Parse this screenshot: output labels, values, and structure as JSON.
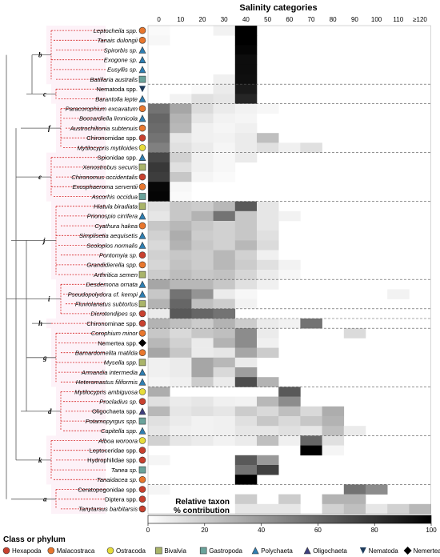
{
  "chart_data": {
    "type": "heatmap",
    "title": "Salinity categories",
    "x_categories": [
      "0",
      "10",
      "20",
      "30",
      "40",
      "50",
      "60",
      "70",
      "80",
      "90",
      "100",
      "110",
      "≥120"
    ],
    "colorbar": {
      "title_line1": "Relative taxon",
      "title_line2": "% contribution",
      "min": 0,
      "max": 100,
      "ticks": [
        "0",
        "20",
        "40",
        "60",
        "80",
        "100"
      ]
    },
    "legend": {
      "title": "Class or phylum",
      "items": [
        {
          "label": "Hexapoda",
          "shape": "circle",
          "color": "#c8412f"
        },
        {
          "label": "Malacostraca",
          "shape": "circle",
          "color": "#e8772e"
        },
        {
          "label": "Ostracoda",
          "shape": "circle",
          "color": "#e6dc3a"
        },
        {
          "label": "Bivalvia",
          "shape": "square",
          "color": "#a9b469"
        },
        {
          "label": "Gastropoda",
          "shape": "square",
          "color": "#6aa39b"
        },
        {
          "label": "Polychaeta",
          "shape": "triangle",
          "color": "#2f7fb2"
        },
        {
          "label": "Oligochaeta",
          "shape": "triangle",
          "color": "#3f3f7f"
        },
        {
          "label": "Nematoda",
          "shape": "triangle-down",
          "color": "#1f3b5b"
        },
        {
          "label": "Nemertea",
          "shape": "diamond",
          "color": "#000000"
        }
      ]
    },
    "clades": [
      "b",
      "c",
      "f",
      "e",
      "j",
      "i",
      "h",
      "g",
      "d",
      "k",
      "a"
    ],
    "rows": [
      {
        "taxon": "Leptocheila spp.",
        "italic": true,
        "group": "Malacostraca",
        "values": [
          2,
          0,
          0,
          5,
          100,
          0,
          0,
          0,
          0,
          0,
          0,
          0,
          0
        ]
      },
      {
        "taxon": "Tanais dulongii",
        "italic": true,
        "group": "Malacostraca",
        "values": [
          3,
          0,
          0,
          0,
          100,
          0,
          0,
          0,
          0,
          0,
          0,
          0,
          0
        ]
      },
      {
        "taxon": "Spirorbis sp.",
        "italic": true,
        "group": "Polychaeta",
        "values": [
          0,
          0,
          0,
          0,
          98,
          0,
          0,
          0,
          0,
          0,
          0,
          0,
          0
        ]
      },
      {
        "taxon": "Exogone sp.",
        "italic": true,
        "group": "Polychaeta",
        "values": [
          0,
          0,
          0,
          0,
          95,
          0,
          0,
          0,
          0,
          0,
          0,
          0,
          0
        ]
      },
      {
        "taxon": "Eusyllis sp.",
        "italic": true,
        "group": "Polychaeta",
        "values": [
          0,
          0,
          0,
          0,
          95,
          0,
          0,
          0,
          0,
          0,
          0,
          0,
          0
        ]
      },
      {
        "taxon": "Batillaria australis",
        "italic": true,
        "group": "Gastropoda",
        "values": [
          0,
          0,
          0,
          6,
          94,
          0,
          0,
          0,
          0,
          0,
          0,
          0,
          0
        ]
      },
      {
        "taxon": "Nematoda spp.",
        "italic": false,
        "group": "Nematoda",
        "values": [
          0,
          0,
          2,
          8,
          90,
          0,
          0,
          0,
          0,
          0,
          0,
          0,
          0
        ]
      },
      {
        "taxon": "Barantolla lepte",
        "italic": true,
        "group": "Polychaeta",
        "values": [
          0,
          5,
          12,
          10,
          85,
          0,
          0,
          0,
          0,
          0,
          0,
          0,
          0
        ]
      },
      {
        "taxon": "Paracorophium excavatum",
        "italic": true,
        "group": "Malacostraca",
        "values": [
          55,
          35,
          14,
          8,
          5,
          3,
          0,
          0,
          0,
          0,
          0,
          0,
          0
        ]
      },
      {
        "taxon": "Boccardiella limnicola",
        "italic": true,
        "group": "Polychaeta",
        "values": [
          60,
          30,
          10,
          5,
          4,
          0,
          0,
          0,
          0,
          0,
          0,
          0,
          0
        ]
      },
      {
        "taxon": "Austrochiltonia subtenuis",
        "italic": true,
        "group": "Malacostraca",
        "values": [
          58,
          28,
          6,
          4,
          6,
          0,
          0,
          0,
          0,
          0,
          0,
          0,
          0
        ]
      },
      {
        "taxon": "Chironomidae spp.",
        "italic": false,
        "group": "Hexapoda",
        "values": [
          55,
          10,
          6,
          5,
          8,
          25,
          0,
          0,
          0,
          0,
          0,
          0,
          0
        ]
      },
      {
        "taxon": "Mytilocypris mytiloides",
        "italic": true,
        "group": "Ostracoda",
        "values": [
          50,
          12,
          8,
          4,
          8,
          12,
          6,
          12,
          0,
          0,
          0,
          0,
          0
        ]
      },
      {
        "taxon": "Spionidae spp.",
        "italic": false,
        "group": "Polychaeta",
        "values": [
          72,
          18,
          6,
          3,
          8,
          0,
          0,
          0,
          0,
          0,
          0,
          0,
          0
        ]
      },
      {
        "taxon": "Xenostrobus securis",
        "italic": true,
        "group": "Bivalvia",
        "values": [
          78,
          12,
          6,
          3,
          0,
          0,
          0,
          0,
          0,
          0,
          0,
          0,
          0
        ]
      },
      {
        "taxon": "Chironomus occidentalis",
        "italic": true,
        "group": "Hexapoda",
        "values": [
          76,
          22,
          4,
          2,
          0,
          0,
          0,
          0,
          0,
          0,
          0,
          0,
          0
        ]
      },
      {
        "taxon": "Exosphaeroma serventii",
        "italic": true,
        "group": "Malacostraca",
        "values": [
          97,
          3,
          0,
          0,
          0,
          0,
          0,
          0,
          0,
          0,
          0,
          0,
          0
        ]
      },
      {
        "taxon": "Ascorhis occidua",
        "italic": true,
        "group": "Gastropoda",
        "values": [
          98,
          2,
          0,
          0,
          0,
          0,
          0,
          0,
          0,
          0,
          0,
          0,
          0
        ]
      },
      {
        "taxon": "Hiatula biradiata",
        "italic": true,
        "group": "Bivalvia",
        "values": [
          12,
          22,
          20,
          28,
          65,
          10,
          0,
          0,
          0,
          0,
          0,
          0,
          0
        ]
      },
      {
        "taxon": "Prionospio cirrifera",
        "italic": true,
        "group": "Polychaeta",
        "values": [
          10,
          22,
          30,
          55,
          22,
          10,
          5,
          0,
          0,
          0,
          0,
          0,
          0
        ]
      },
      {
        "taxon": "Cyathura hakea",
        "italic": true,
        "group": "Malacostraca",
        "values": [
          22,
          28,
          22,
          18,
          22,
          10,
          0,
          0,
          0,
          0,
          0,
          0,
          0
        ]
      },
      {
        "taxon": "Simplisetia aequisetis",
        "italic": true,
        "group": "Polychaeta",
        "values": [
          18,
          32,
          20,
          18,
          22,
          12,
          0,
          0,
          0,
          0,
          0,
          0,
          0
        ]
      },
      {
        "taxon": "Scoloplos normalis",
        "italic": true,
        "group": "Polychaeta",
        "values": [
          15,
          30,
          22,
          18,
          28,
          14,
          0,
          0,
          0,
          0,
          0,
          0,
          0
        ]
      },
      {
        "taxon": "Pontomyia sp.",
        "italic": true,
        "group": "Hexapoda",
        "values": [
          18,
          22,
          20,
          28,
          18,
          6,
          0,
          0,
          0,
          0,
          0,
          0,
          0
        ]
      },
      {
        "taxon": "Grandidierella spp.",
        "italic": true,
        "group": "Malacostraca",
        "values": [
          16,
          24,
          20,
          28,
          20,
          12,
          5,
          0,
          0,
          0,
          0,
          0,
          0
        ]
      },
      {
        "taxon": "Arthritica semen",
        "italic": true,
        "group": "Bivalvia",
        "values": [
          20,
          26,
          22,
          24,
          16,
          8,
          3,
          0,
          0,
          0,
          0,
          0,
          0
        ]
      },
      {
        "taxon": "Desdemona ornata",
        "italic": true,
        "group": "Polychaeta",
        "values": [
          35,
          28,
          28,
          22,
          12,
          6,
          0,
          0,
          0,
          0,
          0,
          0,
          0
        ]
      },
      {
        "taxon": "Pseudopolydora cf. kempi",
        "italic": true,
        "group": "Polychaeta",
        "values": [
          22,
          55,
          42,
          8,
          3,
          0,
          0,
          0,
          0,
          0,
          0,
          5,
          0
        ]
      },
      {
        "taxon": "Fluviolanatus subtortus",
        "italic": true,
        "group": "Bivalvia",
        "values": [
          30,
          60,
          25,
          20,
          5,
          0,
          0,
          0,
          0,
          0,
          0,
          0,
          0
        ]
      },
      {
        "taxon": "Dicrotendipes sp.",
        "italic": true,
        "group": "Hexapoda",
        "values": [
          8,
          65,
          60,
          55,
          0,
          0,
          0,
          0,
          0,
          0,
          0,
          0,
          0
        ]
      },
      {
        "taxon": "Chironominae spp.",
        "italic": false,
        "group": "Hexapoda",
        "values": [
          30,
          25,
          20,
          30,
          20,
          8,
          5,
          55,
          0,
          0,
          0,
          0,
          0
        ]
      },
      {
        "taxon": "Corophium minor",
        "italic": true,
        "group": "Malacostraca",
        "values": [
          22,
          15,
          22,
          25,
          45,
          8,
          0,
          0,
          0,
          14,
          0,
          0,
          0
        ]
      },
      {
        "taxon": "Nemertea spp.",
        "italic": false,
        "group": "Nemertea",
        "values": [
          28,
          18,
          8,
          30,
          45,
          6,
          0,
          0,
          0,
          0,
          0,
          0,
          0
        ]
      },
      {
        "taxon": "Barnardomelita matilda",
        "italic": true,
        "group": "Malacostraca",
        "values": [
          35,
          22,
          8,
          10,
          35,
          20,
          0,
          0,
          0,
          0,
          0,
          0,
          0
        ]
      },
      {
        "taxon": "Mysella spp.",
        "italic": true,
        "group": "Bivalvia",
        "values": [
          6,
          8,
          35,
          28,
          8,
          0,
          0,
          0,
          0,
          0,
          0,
          0,
          0
        ]
      },
      {
        "taxon": "Armandia intermedia",
        "italic": true,
        "group": "Polychaeta",
        "values": [
          6,
          8,
          35,
          15,
          38,
          0,
          0,
          0,
          0,
          0,
          0,
          0,
          0
        ]
      },
      {
        "taxon": "Heteromastus filiformis",
        "italic": true,
        "group": "Polychaeta",
        "values": [
          4,
          6,
          20,
          8,
          70,
          30,
          0,
          0,
          0,
          0,
          0,
          0,
          0
        ]
      },
      {
        "taxon": "Mytilocypris ambiguosa",
        "italic": true,
        "group": "Ostracoda",
        "values": [
          32,
          0,
          0,
          0,
          0,
          0,
          65,
          0,
          0,
          0,
          0,
          0,
          0
        ]
      },
      {
        "taxon": "Procladius sp.",
        "italic": true,
        "group": "Hexapoda",
        "values": [
          12,
          8,
          10,
          6,
          5,
          28,
          45,
          0,
          0,
          0,
          0,
          0,
          0
        ]
      },
      {
        "taxon": "Oligochaeta spp.",
        "italic": false,
        "group": "Oligochaeta",
        "values": [
          28,
          10,
          12,
          10,
          20,
          15,
          25,
          15,
          32,
          0,
          0,
          0,
          0
        ]
      },
      {
        "taxon": "Potamopyrgus spp.",
        "italic": true,
        "group": "Gastropoda",
        "values": [
          12,
          8,
          5,
          6,
          12,
          22,
          15,
          22,
          30,
          0,
          0,
          0,
          0
        ]
      },
      {
        "taxon": "Capitella spp.",
        "italic": true,
        "group": "Polychaeta",
        "values": [
          10,
          6,
          5,
          6,
          10,
          10,
          12,
          10,
          25,
          8,
          0,
          0,
          0
        ]
      },
      {
        "taxon": "Alboa woroora",
        "italic": true,
        "group": "Ostracoda",
        "values": [
          18,
          10,
          8,
          5,
          8,
          25,
          6,
          60,
          12,
          0,
          0,
          0,
          0
        ]
      },
      {
        "taxon": "Leptoceridae spp.",
        "italic": false,
        "group": "Hexapoda",
        "values": [
          0,
          0,
          0,
          0,
          0,
          0,
          0,
          100,
          4,
          0,
          0,
          0,
          0
        ]
      },
      {
        "taxon": "Hydrophilidae spp.",
        "italic": false,
        "group": "Hexapoda",
        "values": [
          4,
          0,
          0,
          0,
          65,
          40,
          0,
          0,
          0,
          0,
          0,
          0,
          0
        ]
      },
      {
        "taxon": "Tanea sp.",
        "italic": true,
        "group": "Gastropoda",
        "values": [
          0,
          0,
          0,
          0,
          55,
          75,
          0,
          0,
          0,
          0,
          0,
          0,
          0
        ]
      },
      {
        "taxon": "Tanaidacea sp.",
        "italic": true,
        "group": "Malacostraca",
        "values": [
          0,
          0,
          0,
          0,
          100,
          0,
          0,
          0,
          0,
          0,
          0,
          0,
          0
        ]
      },
      {
        "taxon": "Ceratopogonidae spp.",
        "italic": false,
        "group": "Hexapoda",
        "values": [
          4,
          0,
          0,
          0,
          0,
          0,
          0,
          0,
          0,
          55,
          45,
          0,
          0
        ]
      },
      {
        "taxon": "Diptera spp.",
        "italic": false,
        "group": "Hexapoda",
        "values": [
          0,
          0,
          0,
          0,
          20,
          0,
          20,
          0,
          30,
          30,
          0,
          0,
          0
        ]
      },
      {
        "taxon": "Tanytarsus barbitarsis",
        "italic": true,
        "group": "Hexapoda",
        "values": [
          0,
          0,
          0,
          0,
          10,
          10,
          10,
          0,
          18,
          25,
          10,
          18,
          28
        ]
      }
    ]
  }
}
